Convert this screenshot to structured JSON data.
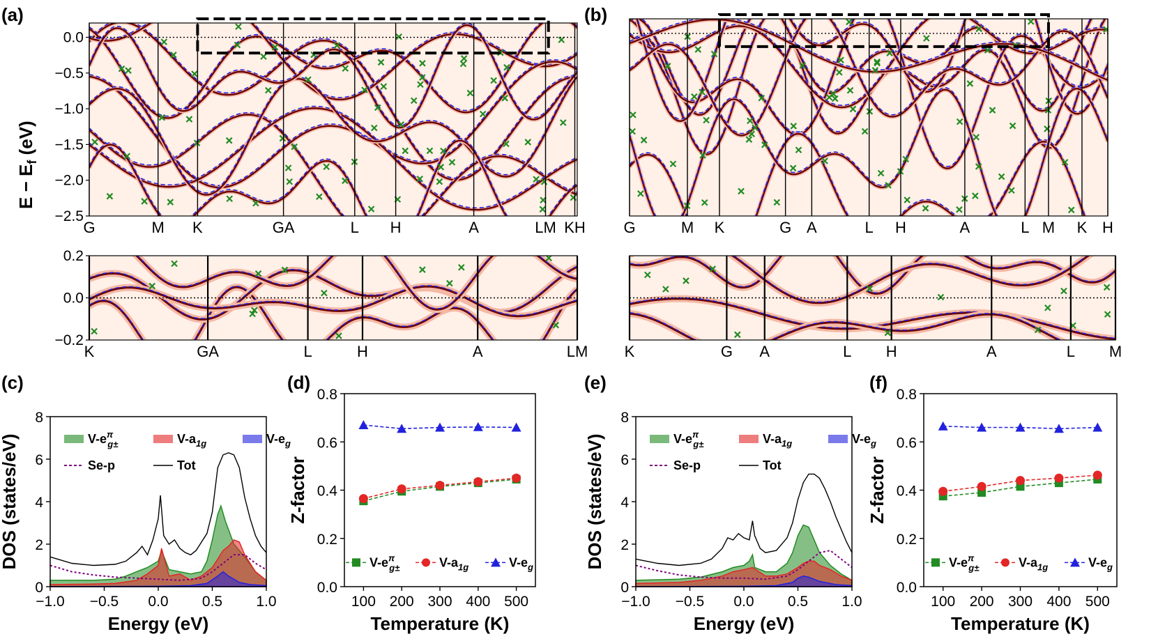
{
  "panel_labels": [
    "(a)",
    "(b)",
    "(c)",
    "(d)",
    "(e)",
    "(f)"
  ],
  "colors": {
    "green": "#228b22",
    "red": "#e32626",
    "blue": "#2222dd",
    "purple": "#800080",
    "dark_red": "#6b0000",
    "bg_band": "#fff0e8"
  },
  "chart_data": [
    {
      "id": "a_top",
      "type": "line",
      "description_kind": "band structure spectral function",
      "ylabel": "E − E",
      "ylabel_sub": "f",
      "ylabel_unit": " (eV)",
      "ylim": [
        -2.5,
        0.2
      ],
      "yticks": [
        0.0,
        -0.5,
        -1.0,
        -1.5,
        -2.0,
        -2.5
      ],
      "ytick_labels": [
        "0.0",
        "−0.5",
        "−1.0",
        "−1.5",
        "−2.0",
        "−2.5"
      ],
      "kpath": [
        "G",
        "M",
        "K",
        "G",
        "A",
        "L",
        "H",
        "A",
        "L",
        "M",
        "K",
        "H"
      ],
      "kpos": [
        0,
        0.141,
        0.222,
        0.393,
        0.404,
        0.544,
        0.628,
        0.788,
        0.93,
        0.941,
        1.0,
        1.0
      ],
      "ktick_labels": [
        "G",
        "M",
        "K",
        "GA",
        "L",
        "H",
        "A",
        "LM",
        "KH"
      ],
      "ktick_pos": [
        0,
        0.141,
        0.222,
        0.398,
        0.544,
        0.628,
        0.788,
        0.935,
        0.995
      ],
      "zoom_box": {
        "x0": 0.222,
        "x1": 0.941,
        "y0": 0.2,
        "y1": -0.22
      }
    },
    {
      "id": "a_bottom",
      "type": "line",
      "ylim": [
        -0.2,
        0.2
      ],
      "yticks": [
        0.2,
        0.0,
        -0.2
      ],
      "ytick_labels": [
        "0.2",
        "0.0",
        "−0.2"
      ],
      "ktick_labels": [
        "K",
        "GA",
        "L",
        "H",
        "A",
        "LM"
      ],
      "ktick_pos": [
        0,
        0.243,
        0.448,
        0.56,
        0.796,
        1.0
      ]
    },
    {
      "id": "b_top",
      "type": "line",
      "ylim": [
        -2.5,
        0.2
      ],
      "ktick_labels": [
        "G",
        "M",
        "K",
        "G",
        "A",
        "L",
        "H",
        "A",
        "L",
        "M",
        "K",
        "H"
      ],
      "ktick_pos": [
        0,
        0.121,
        0.188,
        0.326,
        0.381,
        0.501,
        0.567,
        0.701,
        0.827,
        0.876,
        0.946,
        1.0
      ],
      "zoom_box": {
        "x0": 0.188,
        "x1": 0.876,
        "y0": 0.2,
        "y1": -0.18
      }
    },
    {
      "id": "b_bottom",
      "type": "line",
      "ylim": [
        -0.2,
        0.2
      ],
      "ktick_labels": [
        "K",
        "G",
        "A",
        "L",
        "H",
        "A",
        "L",
        "M"
      ],
      "ktick_pos": [
        0,
        0.2,
        0.278,
        0.448,
        0.539,
        0.745,
        0.908,
        1.0
      ]
    },
    {
      "id": "c",
      "type": "area",
      "xlabel": "Energy (eV)",
      "ylabel": "DOS (states/eV)",
      "xlim": [
        -1.0,
        1.0
      ],
      "ylim": [
        0,
        8
      ],
      "xticks": [
        -1.0,
        -0.5,
        0.0,
        0.5,
        1.0
      ],
      "xtick_labels": [
        "−1.0",
        "−0.5",
        "0.0",
        "0.5",
        "1.0"
      ],
      "yticks": [
        0,
        2,
        4,
        6,
        8
      ],
      "ytick_labels": [
        "0",
        "2",
        "4",
        "6",
        "8"
      ],
      "legend": [
        "V-e",
        "V-a",
        "V-e",
        "Se-p",
        "Tot"
      ],
      "legend_tex": {
        "eg_pi": "π",
        "eg_sub": "g±",
        "a_sub": "1g",
        "e_sub": "g"
      },
      "series": [
        {
          "name": "Tot",
          "x": [
            -1.0,
            -0.8,
            -0.6,
            -0.4,
            -0.3,
            -0.2,
            -0.15,
            -0.1,
            -0.05,
            0.0,
            0.02,
            0.05,
            0.1,
            0.15,
            0.2,
            0.25,
            0.3,
            0.35,
            0.4,
            0.45,
            0.5,
            0.55,
            0.6,
            0.65,
            0.7,
            0.75,
            0.8,
            0.85,
            0.9,
            0.95,
            1.0
          ],
          "values": [
            1.4,
            1.1,
            1.0,
            1.05,
            1.2,
            1.6,
            1.9,
            1.5,
            2.2,
            3.2,
            4.3,
            2.4,
            2.0,
            2.2,
            1.8,
            1.6,
            1.5,
            1.7,
            2.1,
            2.5,
            3.5,
            5.6,
            6.2,
            6.3,
            6.2,
            5.6,
            4.2,
            3.2,
            2.4,
            1.9,
            1.6
          ]
        },
        {
          "name": "V-eg_pi",
          "x": [
            -1.0,
            -0.6,
            -0.4,
            -0.3,
            -0.2,
            -0.1,
            0.0,
            0.03,
            0.1,
            0.2,
            0.3,
            0.4,
            0.45,
            0.5,
            0.55,
            0.58,
            0.62,
            0.7,
            0.8,
            0.9,
            1.0
          ],
          "values": [
            0.3,
            0.3,
            0.35,
            0.5,
            0.7,
            0.9,
            1.2,
            1.7,
            0.8,
            0.7,
            0.6,
            0.7,
            1.2,
            2.2,
            3.4,
            3.8,
            3.1,
            2.0,
            1.4,
            0.7,
            0.3
          ]
        },
        {
          "name": "V-a1g",
          "x": [
            -1.0,
            -0.6,
            -0.4,
            -0.2,
            -0.1,
            0.0,
            0.03,
            0.1,
            0.2,
            0.3,
            0.4,
            0.5,
            0.55,
            0.6,
            0.65,
            0.7,
            0.75,
            0.8,
            0.9,
            1.0
          ],
          "values": [
            0.1,
            0.12,
            0.15,
            0.3,
            0.6,
            1.0,
            1.8,
            0.5,
            0.6,
            0.3,
            0.5,
            0.9,
            1.3,
            1.7,
            1.9,
            2.2,
            2.1,
            1.5,
            0.7,
            0.3
          ]
        },
        {
          "name": "V-eg",
          "x": [
            -1.0,
            0.0,
            0.3,
            0.45,
            0.55,
            0.6,
            0.65,
            0.75,
            0.85,
            1.0
          ],
          "values": [
            0.0,
            0.02,
            0.05,
            0.15,
            0.5,
            0.7,
            0.5,
            0.2,
            0.1,
            0.05
          ]
        },
        {
          "name": "Se-p",
          "x": [
            -1.0,
            -0.8,
            -0.6,
            -0.4,
            -0.2,
            0.0,
            0.2,
            0.4,
            0.5,
            0.6,
            0.7,
            0.8,
            0.9,
            1.0
          ],
          "values": [
            1.0,
            0.7,
            0.55,
            0.45,
            0.4,
            0.35,
            0.3,
            0.4,
            0.7,
            1.1,
            1.5,
            1.5,
            1.1,
            0.8
          ]
        }
      ]
    },
    {
      "id": "d",
      "type": "line",
      "xlabel": "Temperature (K)",
      "ylabel": "Z-factor",
      "xlim": [
        50,
        550
      ],
      "ylim": [
        0.0,
        0.8
      ],
      "xticks": [
        100,
        200,
        300,
        400,
        500
      ],
      "xtick_labels": [
        "100",
        "200",
        "300",
        "400",
        "500"
      ],
      "yticks": [
        0.0,
        0.2,
        0.4,
        0.6,
        0.8
      ],
      "ytick_labels": [
        "0.0",
        "0.2",
        "0.4",
        "0.6",
        "0.8"
      ],
      "legend": [
        "V-e",
        "V-a",
        "V-e"
      ],
      "x": [
        100,
        200,
        300,
        400,
        500
      ],
      "series": [
        {
          "name": "V-eg_pi",
          "values": [
            0.355,
            0.395,
            0.415,
            0.43,
            0.445
          ]
        },
        {
          "name": "V-a1g",
          "values": [
            0.365,
            0.405,
            0.42,
            0.435,
            0.45
          ]
        },
        {
          "name": "V-eg",
          "values": [
            0.67,
            0.655,
            0.66,
            0.662,
            0.66
          ]
        }
      ]
    },
    {
      "id": "e",
      "type": "area",
      "xlabel": "Energy (eV)",
      "ylabel": "DOS (states/eV)",
      "xlim": [
        -1.0,
        1.0
      ],
      "ylim": [
        0,
        8
      ],
      "xticks": [
        -1.0,
        -0.5,
        0.0,
        0.5,
        1.0
      ],
      "xtick_labels": [
        "−1.0",
        "−0.5",
        "0.0",
        "0.5",
        "1.0"
      ],
      "yticks": [
        0,
        2,
        4,
        6,
        8
      ],
      "ytick_labels": [
        "0",
        "2",
        "4",
        "6",
        "8"
      ],
      "legend": [
        "V-e",
        "V-a",
        "V-e",
        "Se-p",
        "Tot"
      ],
      "series": [
        {
          "name": "Tot",
          "x": [
            -1.0,
            -0.8,
            -0.6,
            -0.4,
            -0.3,
            -0.2,
            -0.15,
            -0.1,
            -0.05,
            0.0,
            0.05,
            0.08,
            0.1,
            0.15,
            0.2,
            0.3,
            0.4,
            0.45,
            0.5,
            0.55,
            0.6,
            0.65,
            0.7,
            0.75,
            0.8,
            0.85,
            0.9,
            0.95,
            1.0
          ],
          "values": [
            1.3,
            1.1,
            1.0,
            1.1,
            1.3,
            1.8,
            2.3,
            2.2,
            2.5,
            2.3,
            2.2,
            3.1,
            2.4,
            1.8,
            1.6,
            1.7,
            2.3,
            3.0,
            4.1,
            4.9,
            5.3,
            5.3,
            5.1,
            4.6,
            4.0,
            3.3,
            2.7,
            2.1,
            1.6
          ]
        },
        {
          "name": "V-eg_pi",
          "x": [
            -1.0,
            -0.6,
            -0.4,
            -0.2,
            -0.1,
            0.0,
            0.05,
            0.08,
            0.1,
            0.2,
            0.3,
            0.4,
            0.45,
            0.5,
            0.55,
            0.6,
            0.65,
            0.7,
            0.8,
            0.9,
            1.0
          ],
          "values": [
            0.3,
            0.35,
            0.45,
            0.7,
            0.9,
            1.0,
            1.2,
            1.5,
            0.9,
            0.7,
            0.7,
            1.1,
            1.6,
            2.4,
            2.9,
            2.8,
            2.2,
            1.6,
            1.0,
            0.6,
            0.3
          ]
        },
        {
          "name": "V-a1g",
          "x": [
            -1.0,
            -0.6,
            -0.4,
            -0.2,
            -0.1,
            0.0,
            0.08,
            0.2,
            0.3,
            0.4,
            0.5,
            0.55,
            0.6,
            0.65,
            0.7,
            0.8,
            0.9,
            1.0
          ],
          "values": [
            0.15,
            0.2,
            0.3,
            0.5,
            0.7,
            0.8,
            0.9,
            0.5,
            0.5,
            0.6,
            0.9,
            1.1,
            1.2,
            1.2,
            1.0,
            0.8,
            0.5,
            0.3
          ]
        },
        {
          "name": "V-eg",
          "x": [
            -1.0,
            0.0,
            0.3,
            0.45,
            0.5,
            0.55,
            0.6,
            0.7,
            0.85,
            1.0
          ],
          "values": [
            0.0,
            0.02,
            0.05,
            0.2,
            0.4,
            0.5,
            0.45,
            0.25,
            0.1,
            0.05
          ]
        },
        {
          "name": "Se-p",
          "x": [
            -1.0,
            -0.8,
            -0.6,
            -0.4,
            -0.2,
            0.0,
            0.2,
            0.4,
            0.5,
            0.6,
            0.7,
            0.8,
            0.9,
            1.0
          ],
          "values": [
            1.0,
            0.75,
            0.55,
            0.45,
            0.4,
            0.4,
            0.35,
            0.5,
            0.8,
            1.2,
            1.6,
            1.7,
            1.3,
            0.9
          ]
        }
      ]
    },
    {
      "id": "f",
      "type": "line",
      "xlabel": "Temperature (K)",
      "ylabel": "Z-factor",
      "xlim": [
        50,
        550
      ],
      "ylim": [
        0.0,
        0.8
      ],
      "xticks": [
        100,
        200,
        300,
        400,
        500
      ],
      "xtick_labels": [
        "100",
        "200",
        "300",
        "400",
        "500"
      ],
      "yticks": [
        0.0,
        0.2,
        0.4,
        0.6,
        0.8
      ],
      "ytick_labels": [
        "0.0",
        "0.2",
        "0.4",
        "0.6",
        "0.8"
      ],
      "legend": [
        "V-e",
        "V-a",
        "V-e"
      ],
      "x": [
        100,
        200,
        300,
        400,
        500
      ],
      "series": [
        {
          "name": "V-eg_pi",
          "values": [
            0.375,
            0.39,
            0.415,
            0.43,
            0.445
          ]
        },
        {
          "name": "V-a1g",
          "values": [
            0.395,
            0.415,
            0.44,
            0.45,
            0.462
          ]
        },
        {
          "name": "V-eg",
          "values": [
            0.665,
            0.66,
            0.66,
            0.655,
            0.66
          ]
        }
      ]
    }
  ]
}
